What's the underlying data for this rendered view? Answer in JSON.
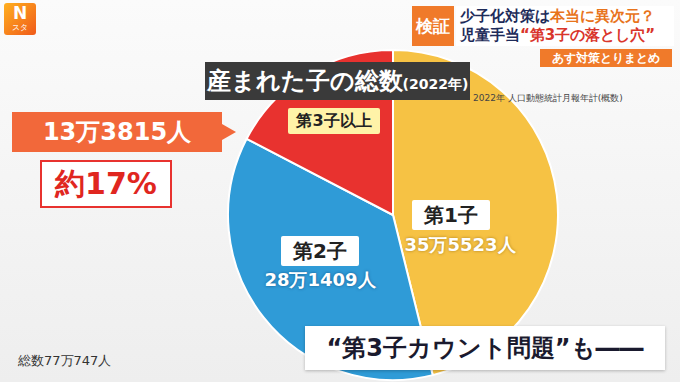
{
  "chart_data": {
    "type": "pie",
    "title": "産まれた子の総数",
    "title_suffix": "(2022年)",
    "source": "2022年 人口動態統計月報年計(概数)",
    "categories": [
      "第1子",
      "第2子",
      "第3子以上"
    ],
    "values": [
      355523,
      281409,
      133815
    ],
    "value_labels": [
      "35万5523人",
      "28万1409人",
      "13万3815人"
    ],
    "colors": [
      "#f6c244",
      "#2f9bd7",
      "#e8322f"
    ],
    "data_labels": true,
    "share_label": "約17%",
    "total_label": "総数77万747人"
  },
  "header": {
    "logo": [
      "N",
      "スタ"
    ],
    "badge": "検証",
    "line1": [
      "少子化対策は",
      "本当に異次元？"
    ],
    "line2": [
      "児童手当",
      "“第3子の落とし穴”"
    ],
    "tag": "あす対策とりまとめ"
  },
  "caption": "“第3子カウント問題”も――"
}
